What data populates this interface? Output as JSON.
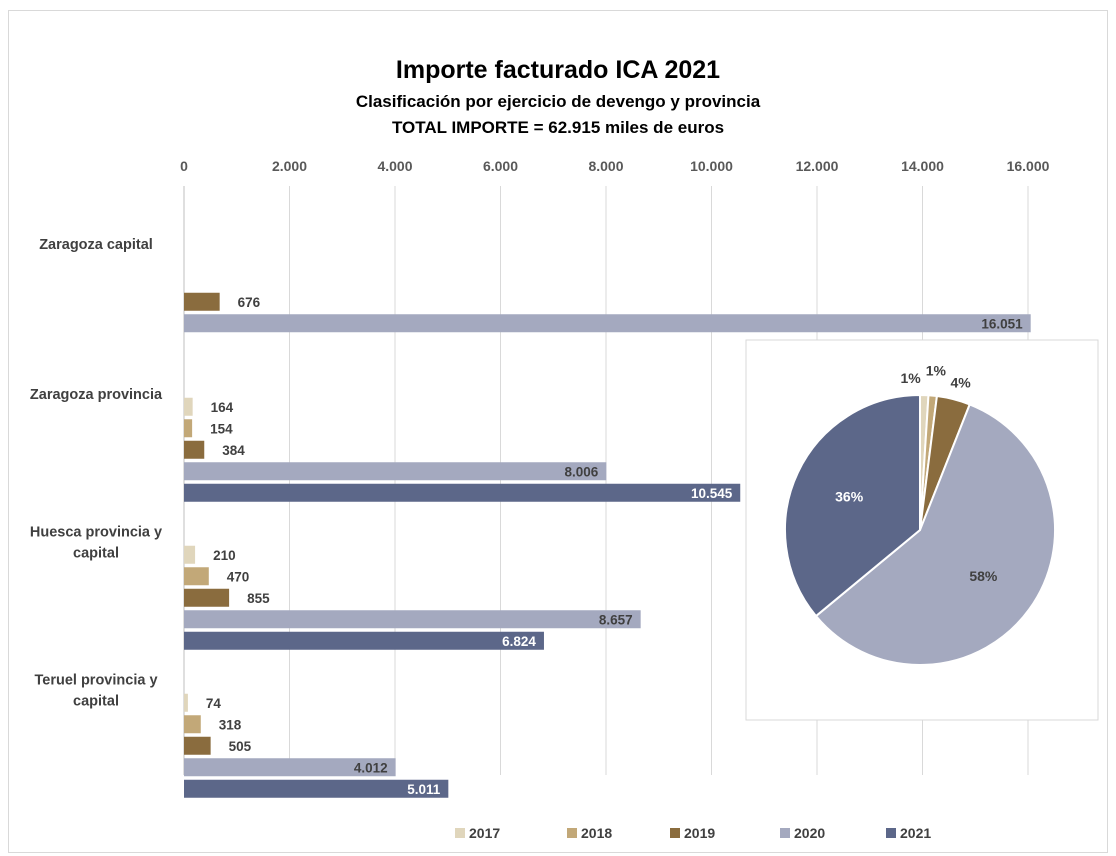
{
  "chart_data": [
    {
      "type": "bar",
      "orientation": "horizontal",
      "title": "Importe facturado ICA 2021",
      "subtitle": "Clasificación por ejercicio de devengo y provincia",
      "subtitle2": "TOTAL IMPORTE =  62.915 miles de euros",
      "categories": [
        "Zaragoza capital",
        "Zaragoza provincia",
        "Huesca provincia y capital",
        "Teruel provincia y capital"
      ],
      "category_lines": [
        [
          "Zaragoza capital"
        ],
        [
          "Zaragoza provincia"
        ],
        [
          "Huesca provincia y",
          "capital"
        ],
        [
          "Teruel provincia y",
          "capital"
        ]
      ],
      "series": [
        {
          "name": "2017",
          "values": [
            null,
            164,
            210,
            74
          ],
          "labels": [
            "",
            "164",
            "210",
            "74"
          ]
        },
        {
          "name": "2018",
          "values": [
            null,
            154,
            470,
            318
          ],
          "labels": [
            "",
            "154",
            "470",
            "318"
          ]
        },
        {
          "name": "2019",
          "values": [
            676,
            384,
            855,
            505
          ],
          "labels": [
            "676",
            "384",
            "855",
            "505"
          ]
        },
        {
          "name": "2020",
          "values": [
            16051,
            8006,
            8657,
            4012
          ],
          "labels": [
            "16.051",
            "8.006",
            "8.657",
            "4.012"
          ]
        },
        {
          "name": "2021",
          "values": [
            null,
            10545,
            6824,
            5011
          ],
          "labels": [
            "",
            "10.545",
            "6.824",
            "5.011"
          ]
        }
      ],
      "xlim": [
        0,
        16000
      ],
      "ticks": [
        {
          "v": 0,
          "label": "0"
        },
        {
          "v": 2000,
          "label": "2.000"
        },
        {
          "v": 4000,
          "label": "4.000"
        },
        {
          "v": 6000,
          "label": "6.000"
        },
        {
          "v": 8000,
          "label": "8.000"
        },
        {
          "v": 10000,
          "label": "10.000"
        },
        {
          "v": 12000,
          "label": "12.000"
        },
        {
          "v": 14000,
          "label": "14.000"
        },
        {
          "v": 16000,
          "label": "16.000"
        }
      ],
      "axis_position": "top",
      "grid": true,
      "legend": "bottom",
      "colors": {
        "2017": "#e0d6bc",
        "2018": "#c2a878",
        "2019": "#8a6c3e",
        "2020": "#a4a9bf",
        "2021": "#5c6789"
      }
    },
    {
      "type": "pie",
      "slices": [
        {
          "name": "2017",
          "value": 1,
          "label": "1%"
        },
        {
          "name": "2018",
          "value": 1,
          "label": "1%"
        },
        {
          "name": "2019",
          "value": 4,
          "label": "4%"
        },
        {
          "name": "2020",
          "value": 58,
          "label": "58%"
        },
        {
          "name": "2021",
          "value": 36,
          "label": "36%"
        }
      ]
    }
  ]
}
